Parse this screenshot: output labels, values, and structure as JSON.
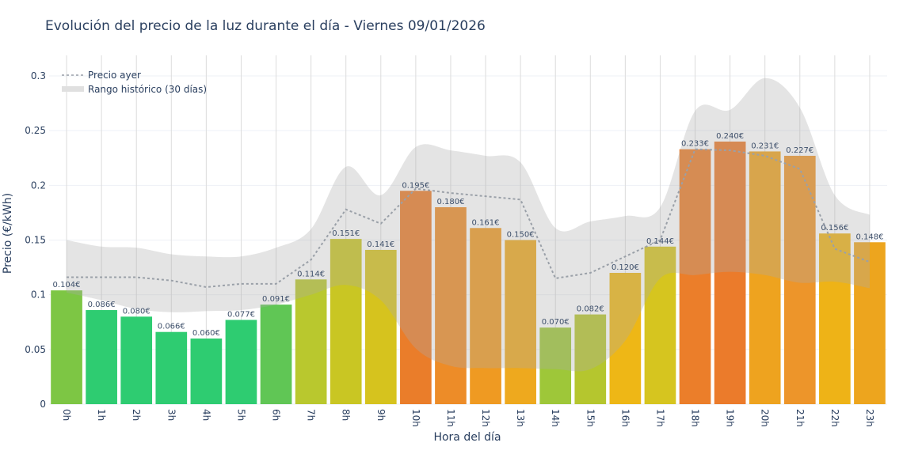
{
  "chart_data": {
    "type": "bar",
    "title": "Evolución del precio de la luz durante el día - Viernes 09/01/2026",
    "xlabel": "Hora del día",
    "ylabel": "Precio (€/kWh)",
    "ylim": [
      0,
      0.31
    ],
    "yticks": [
      "0",
      "0.05",
      "0.1",
      "0.15",
      "0.2",
      "0.25",
      "0.3"
    ],
    "grid": true,
    "legend_position": "top-left",
    "categories": [
      "0h",
      "1h",
      "2h",
      "3h",
      "4h",
      "5h",
      "6h",
      "7h",
      "8h",
      "9h",
      "10h",
      "11h",
      "12h",
      "13h",
      "14h",
      "15h",
      "16h",
      "17h",
      "18h",
      "19h",
      "20h",
      "21h",
      "22h",
      "23h"
    ],
    "values": [
      0.104,
      0.086,
      0.08,
      0.066,
      0.06,
      0.077,
      0.091,
      0.114,
      0.151,
      0.141,
      0.195,
      0.18,
      0.161,
      0.15,
      0.07,
      0.082,
      0.12,
      0.144,
      0.233,
      0.24,
      0.231,
      0.227,
      0.156,
      0.148
    ],
    "value_labels": [
      "0.104€",
      "0.086€",
      "0.080€",
      "0.066€",
      "0.060€",
      "0.077€",
      "0.091€",
      "0.114€",
      "0.151€",
      "0.141€",
      "0.195€",
      "0.180€",
      "0.161€",
      "0.150€",
      "0.070€",
      "0.082€",
      "0.120€",
      "0.144€",
      "0.233€",
      "0.240€",
      "0.231€",
      "0.227€",
      "0.156€",
      "0.148€"
    ],
    "bar_colors": [
      "#7dc644",
      "#2ecc71",
      "#2ecc71",
      "#2ecc71",
      "#2ecc71",
      "#2ecc71",
      "#60c655",
      "#b9c82e",
      "#c9c623",
      "#d6c31e",
      "#ea7d2a",
      "#ed8c28",
      "#ef9a22",
      "#eea91e",
      "#9ec739",
      "#b5c62e",
      "#eeb716",
      "#d6c51f",
      "#eb7e2a",
      "#eb7b2b",
      "#eea31f",
      "#ed952a",
      "#eeb317",
      "#eda51e"
    ],
    "series": [
      {
        "name": "Precio ayer",
        "style": "dotted-line",
        "color": "#9aa0a8",
        "values": [
          0.116,
          0.116,
          0.116,
          0.113,
          0.107,
          0.11,
          0.11,
          0.132,
          0.178,
          0.165,
          0.197,
          0.193,
          0.19,
          0.187,
          0.115,
          0.12,
          0.135,
          0.15,
          0.233,
          0.232,
          0.227,
          0.215,
          0.142,
          0.13
        ]
      },
      {
        "name": "Rango histórico (30 días)",
        "style": "band",
        "color": "#bdbdbd",
        "upper": [
          0.15,
          0.144,
          0.143,
          0.137,
          0.135,
          0.135,
          0.143,
          0.16,
          0.217,
          0.191,
          0.235,
          0.232,
          0.227,
          0.221,
          0.161,
          0.167,
          0.172,
          0.18,
          0.268,
          0.269,
          0.298,
          0.271,
          0.191,
          0.173
        ],
        "lower": [
          0.102,
          0.095,
          0.087,
          0.084,
          0.085,
          0.086,
          0.091,
          0.1,
          0.109,
          0.095,
          0.051,
          0.035,
          0.033,
          0.033,
          0.032,
          0.032,
          0.058,
          0.115,
          0.118,
          0.121,
          0.118,
          0.111,
          0.112,
          0.106
        ]
      }
    ]
  }
}
